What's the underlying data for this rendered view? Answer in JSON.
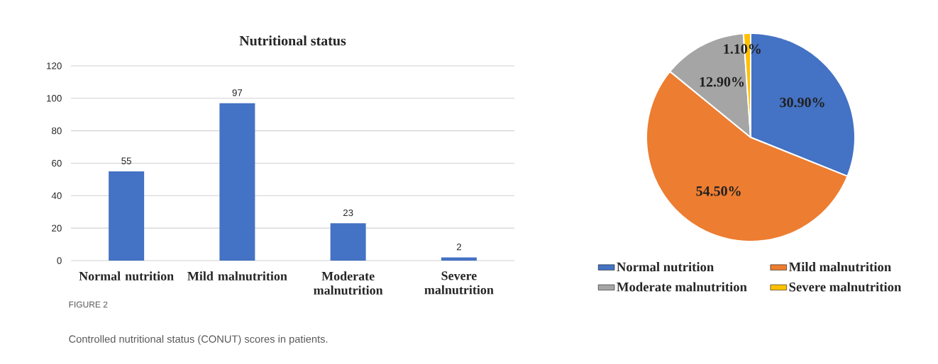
{
  "chart_data": [
    {
      "type": "bar",
      "title": "Nutritional status",
      "categories": [
        "Normal nutrition",
        "Mild malnutrition",
        "Moderate malnutrition",
        "Severe malnutrition"
      ],
      "values": [
        55,
        97,
        23,
        2
      ],
      "color": "#4472c4",
      "ylim": [
        0,
        120
      ],
      "yticks": [
        0,
        20,
        40,
        60,
        80,
        100,
        120
      ],
      "grid": "y",
      "data_labels": true,
      "annotations": [
        "FIGURE 2",
        "Controlled nutritional status (CONUT) scores in patients."
      ]
    },
    {
      "type": "pie",
      "categories": [
        "Normal nutrition",
        "Mild malnutrition",
        "Moderate malnutrition",
        "Severe malnutrition"
      ],
      "values": [
        30.9,
        54.5,
        12.9,
        1.1
      ],
      "colors": [
        "#4472c4",
        "#ed7d31",
        "#a5a5a5",
        "#ffc000"
      ],
      "value_labels": [
        "30.90%",
        "54.50%",
        "12.90%",
        "1.10%"
      ],
      "legend": "bottom"
    }
  ]
}
